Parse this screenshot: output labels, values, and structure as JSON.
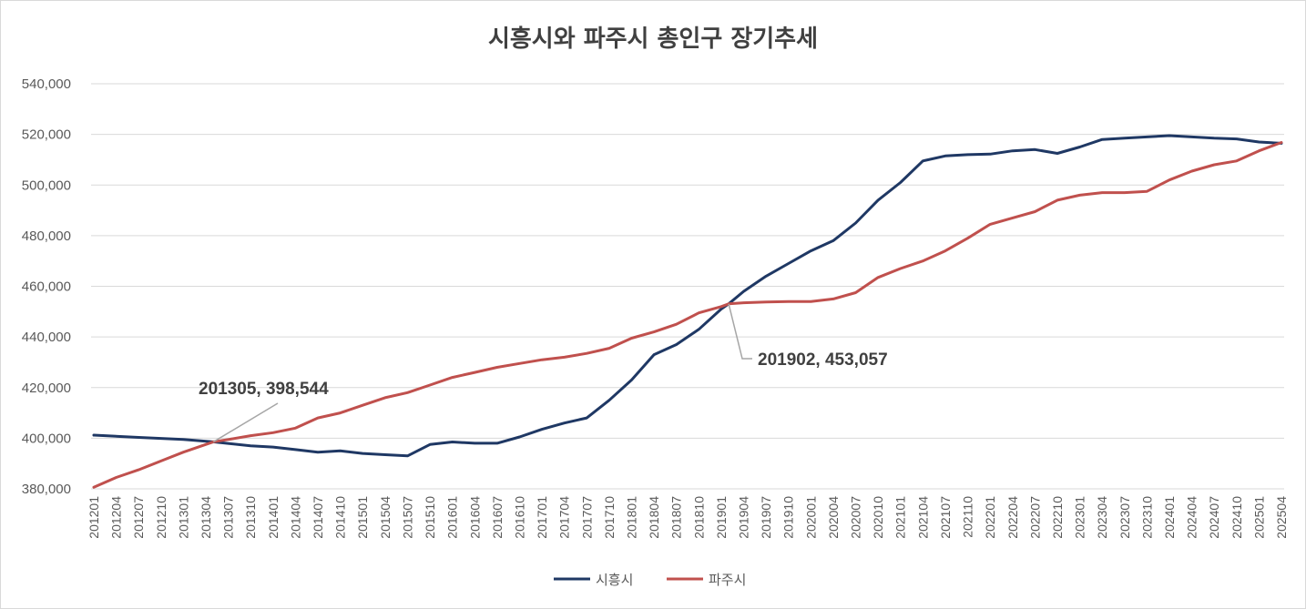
{
  "chart_data": {
    "type": "line",
    "title": "시흥시와 파주시 총인구 장기추세",
    "xlabel": "",
    "ylabel": "",
    "ylim": [
      380000,
      540000
    ],
    "yticks": [
      380000,
      400000,
      420000,
      440000,
      460000,
      480000,
      500000,
      520000,
      540000
    ],
    "ytick_labels": [
      "380,000",
      "400,000",
      "420,000",
      "440,000",
      "460,000",
      "480,000",
      "500,000",
      "520,000",
      "540,000"
    ],
    "x_tick_labels": [
      "201201",
      "201204",
      "201207",
      "201210",
      "201301",
      "201304",
      "201307",
      "201310",
      "201401",
      "201404",
      "201407",
      "201410",
      "201501",
      "201504",
      "201507",
      "201510",
      "201601",
      "201604",
      "201607",
      "201610",
      "201701",
      "201704",
      "201707",
      "201710",
      "201801",
      "201804",
      "201807",
      "201810",
      "201901",
      "201904",
      "201907",
      "201910",
      "202001",
      "202004",
      "202007",
      "202010",
      "202101",
      "202104",
      "202107",
      "202110",
      "202201",
      "202204",
      "202207",
      "202210",
      "202301",
      "202304",
      "202307",
      "202310",
      "202401",
      "202404",
      "202407",
      "202410",
      "202501",
      "202504"
    ],
    "grid": true,
    "legend": "bottom-center",
    "series": [
      {
        "name": "시흥시",
        "color": "#1f3864",
        "points": [
          [
            201201,
            401200
          ],
          [
            201207,
            400300
          ],
          [
            201301,
            399500
          ],
          [
            201305,
            398544
          ],
          [
            201310,
            397000
          ],
          [
            201401,
            396500
          ],
          [
            201404,
            395500
          ],
          [
            201407,
            394500
          ],
          [
            201410,
            395000
          ],
          [
            201501,
            394000
          ],
          [
            201504,
            393500
          ],
          [
            201507,
            393000
          ],
          [
            201510,
            397500
          ],
          [
            201601,
            398500
          ],
          [
            201604,
            398000
          ],
          [
            201607,
            398000
          ],
          [
            201610,
            400500
          ],
          [
            201701,
            403500
          ],
          [
            201704,
            406000
          ],
          [
            201707,
            408000
          ],
          [
            201710,
            415000
          ],
          [
            201801,
            423000
          ],
          [
            201804,
            433000
          ],
          [
            201807,
            437000
          ],
          [
            201810,
            443000
          ],
          [
            201901,
            451000
          ],
          [
            201902,
            453057
          ],
          [
            201904,
            458000
          ],
          [
            201907,
            464000
          ],
          [
            201910,
            469000
          ],
          [
            202001,
            474000
          ],
          [
            202004,
            478000
          ],
          [
            202007,
            485000
          ],
          [
            202010,
            494000
          ],
          [
            202101,
            501000
          ],
          [
            202104,
            509500
          ],
          [
            202107,
            511500
          ],
          [
            202110,
            512000
          ],
          [
            202201,
            512200
          ],
          [
            202204,
            513500
          ],
          [
            202207,
            514000
          ],
          [
            202210,
            512500
          ],
          [
            202301,
            515000
          ],
          [
            202304,
            518000
          ],
          [
            202307,
            518500
          ],
          [
            202310,
            519000
          ],
          [
            202401,
            519500
          ],
          [
            202404,
            519000
          ],
          [
            202407,
            518500
          ],
          [
            202410,
            518200
          ],
          [
            202501,
            517000
          ],
          [
            202504,
            516500
          ]
        ]
      },
      {
        "name": "파주시",
        "color": "#c0504d",
        "points": [
          [
            201201,
            380600
          ],
          [
            201204,
            384500
          ],
          [
            201207,
            387500
          ],
          [
            201210,
            391000
          ],
          [
            201301,
            394500
          ],
          [
            201305,
            398544
          ],
          [
            201307,
            399500
          ],
          [
            201310,
            401000
          ],
          [
            201401,
            402200
          ],
          [
            201404,
            404000
          ],
          [
            201407,
            408000
          ],
          [
            201410,
            410000
          ],
          [
            201501,
            413000
          ],
          [
            201504,
            416000
          ],
          [
            201507,
            418000
          ],
          [
            201510,
            421000
          ],
          [
            201601,
            424000
          ],
          [
            201604,
            426000
          ],
          [
            201607,
            428000
          ],
          [
            201610,
            429500
          ],
          [
            201701,
            431000
          ],
          [
            201704,
            432000
          ],
          [
            201707,
            433500
          ],
          [
            201710,
            435500
          ],
          [
            201801,
            439500
          ],
          [
            201804,
            442000
          ],
          [
            201807,
            445000
          ],
          [
            201810,
            449500
          ],
          [
            201901,
            452000
          ],
          [
            201902,
            453057
          ],
          [
            201904,
            453500
          ],
          [
            201907,
            453800
          ],
          [
            201910,
            454000
          ],
          [
            202001,
            454000
          ],
          [
            202004,
            455000
          ],
          [
            202007,
            457500
          ],
          [
            202010,
            463500
          ],
          [
            202101,
            467000
          ],
          [
            202104,
            470000
          ],
          [
            202107,
            474000
          ],
          [
            202110,
            479000
          ],
          [
            202201,
            484500
          ],
          [
            202204,
            487000
          ],
          [
            202207,
            489500
          ],
          [
            202210,
            494000
          ],
          [
            202301,
            496000
          ],
          [
            202304,
            497000
          ],
          [
            202307,
            497000
          ],
          [
            202310,
            497500
          ],
          [
            202401,
            502000
          ],
          [
            202404,
            505500
          ],
          [
            202407,
            508000
          ],
          [
            202410,
            509500
          ],
          [
            202501,
            513500
          ],
          [
            202504,
            516800
          ]
        ]
      }
    ],
    "annotations": [
      {
        "text": "201305, 398,544",
        "x": 201305,
        "y": 398544
      },
      {
        "text": "201902, 453,057",
        "x": 201902,
        "y": 453057
      }
    ]
  }
}
